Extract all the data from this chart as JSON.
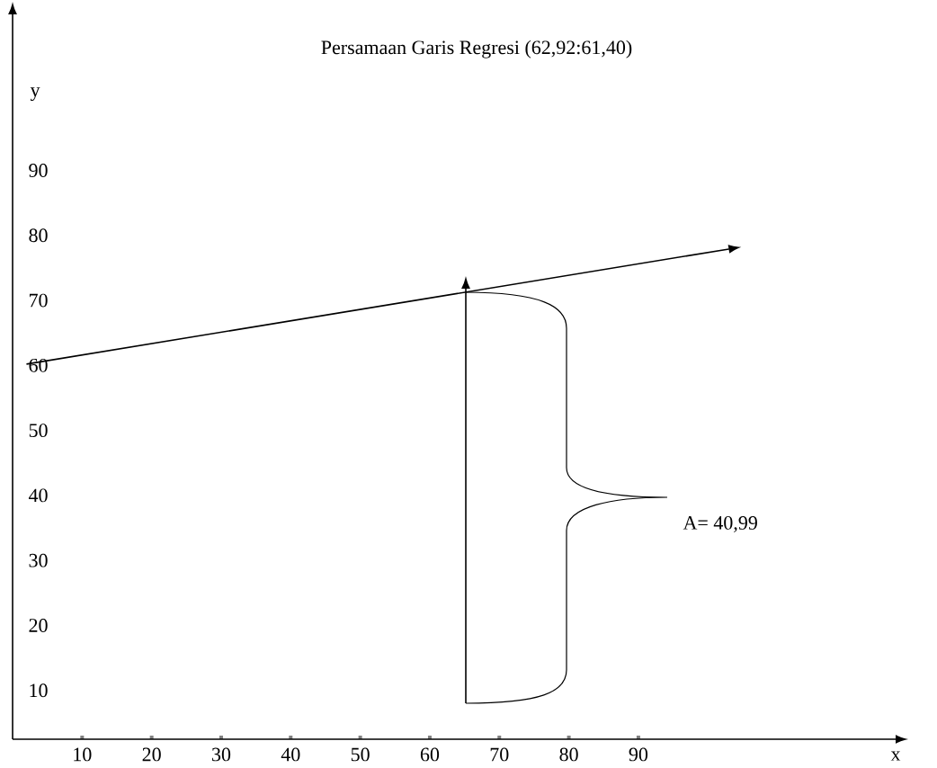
{
  "chart_data": {
    "type": "line",
    "xlabel": "x",
    "ylabel": "y",
    "xlim": [
      0,
      127
    ],
    "ylim": [
      2.5,
      114
    ],
    "xticks": [
      10,
      20,
      30,
      40,
      50,
      60,
      70,
      80,
      90
    ],
    "yticks": [
      10,
      20,
      30,
      40,
      50,
      60,
      70,
      80,
      90
    ],
    "series": [
      {
        "x": [
          2,
          103
        ],
        "values": [
          60.2,
          77.9
        ],
        "color": "#000000"
      }
    ],
    "annotations": [
      "Persamaan Garis Regresi (62,92:61,40)",
      "A= 40,99"
    ],
    "grid": false,
    "marker": "none",
    "line_style": "solid"
  }
}
